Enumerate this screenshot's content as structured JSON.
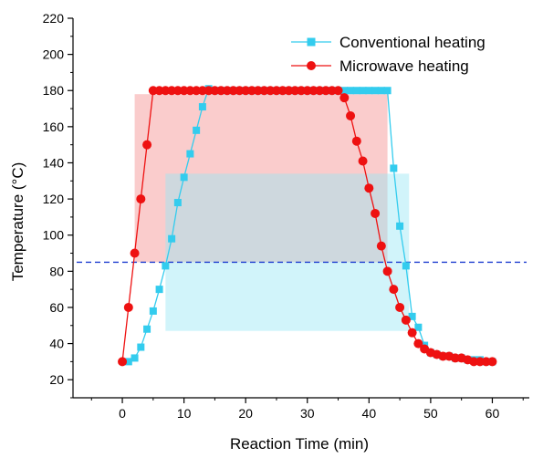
{
  "chart_data": {
    "type": "line",
    "xlabel": "Reaction Time (min)",
    "ylabel": "Temperature (°C)",
    "xlim": [
      -8,
      66
    ],
    "ylim": [
      10,
      220
    ],
    "x_ticks": [
      0,
      10,
      20,
      30,
      40,
      50,
      60
    ],
    "y_ticks": [
      20,
      40,
      60,
      80,
      100,
      120,
      140,
      160,
      180,
      200,
      220
    ],
    "legend_position": "top-right",
    "series": [
      {
        "name": "Conventional heating",
        "color": "#33CCEE",
        "marker": "square",
        "points": [
          [
            1,
            30
          ],
          [
            2,
            32
          ],
          [
            3,
            38
          ],
          [
            4,
            48
          ],
          [
            5,
            58
          ],
          [
            6,
            70
          ],
          [
            7,
            83
          ],
          [
            8,
            98
          ],
          [
            9,
            118
          ],
          [
            10,
            132
          ],
          [
            11,
            145
          ],
          [
            12,
            158
          ],
          [
            13,
            171
          ],
          [
            14,
            181
          ],
          [
            15,
            180
          ],
          [
            16,
            180
          ],
          [
            17,
            180
          ],
          [
            18,
            180
          ],
          [
            19,
            180
          ],
          [
            20,
            180
          ],
          [
            21,
            180
          ],
          [
            22,
            180
          ],
          [
            23,
            180
          ],
          [
            24,
            180
          ],
          [
            25,
            180
          ],
          [
            26,
            180
          ],
          [
            27,
            180
          ],
          [
            28,
            180
          ],
          [
            29,
            180
          ],
          [
            30,
            180
          ],
          [
            31,
            180
          ],
          [
            32,
            180
          ],
          [
            33,
            180
          ],
          [
            34,
            180
          ],
          [
            35,
            180
          ],
          [
            36,
            180
          ],
          [
            37,
            180
          ],
          [
            38,
            180
          ],
          [
            39,
            180
          ],
          [
            40,
            180
          ],
          [
            41,
            180
          ],
          [
            42,
            180
          ],
          [
            43,
            180
          ],
          [
            44,
            137
          ],
          [
            45,
            105
          ],
          [
            46,
            83
          ],
          [
            47,
            55
          ],
          [
            48,
            49
          ],
          [
            49,
            39
          ],
          [
            50,
            35
          ],
          [
            51,
            34
          ],
          [
            52,
            33
          ],
          [
            53,
            33
          ],
          [
            54,
            32
          ],
          [
            55,
            32
          ],
          [
            56,
            31
          ],
          [
            57,
            31
          ],
          [
            58,
            31
          ],
          [
            59,
            30
          ],
          [
            60,
            30
          ]
        ]
      },
      {
        "name": "Microwave heating",
        "color": "#EE1111",
        "marker": "circle",
        "points": [
          [
            0,
            30
          ],
          [
            1,
            60
          ],
          [
            2,
            90
          ],
          [
            3,
            120
          ],
          [
            4,
            150
          ],
          [
            5,
            180
          ],
          [
            6,
            180
          ],
          [
            7,
            180
          ],
          [
            8,
            180
          ],
          [
            9,
            180
          ],
          [
            10,
            180
          ],
          [
            11,
            180
          ],
          [
            12,
            180
          ],
          [
            13,
            180
          ],
          [
            14,
            180
          ],
          [
            15,
            180
          ],
          [
            16,
            180
          ],
          [
            17,
            180
          ],
          [
            18,
            180
          ],
          [
            19,
            180
          ],
          [
            20,
            180
          ],
          [
            21,
            180
          ],
          [
            22,
            180
          ],
          [
            23,
            180
          ],
          [
            24,
            180
          ],
          [
            25,
            180
          ],
          [
            26,
            180
          ],
          [
            27,
            180
          ],
          [
            28,
            180
          ],
          [
            29,
            180
          ],
          [
            30,
            180
          ],
          [
            31,
            180
          ],
          [
            32,
            180
          ],
          [
            33,
            180
          ],
          [
            34,
            180
          ],
          [
            35,
            180
          ],
          [
            36,
            176
          ],
          [
            37,
            166
          ],
          [
            38,
            152
          ],
          [
            39,
            141
          ],
          [
            40,
            126
          ],
          [
            41,
            112
          ],
          [
            42,
            94
          ],
          [
            43,
            80
          ],
          [
            44,
            70
          ],
          [
            45,
            60
          ],
          [
            46,
            53
          ],
          [
            47,
            46
          ],
          [
            48,
            40
          ],
          [
            49,
            37
          ],
          [
            50,
            35
          ],
          [
            51,
            34
          ],
          [
            52,
            33
          ],
          [
            53,
            33
          ],
          [
            54,
            32
          ],
          [
            55,
            32
          ],
          [
            56,
            31
          ],
          [
            57,
            30
          ],
          [
            58,
            30
          ],
          [
            59,
            30
          ],
          [
            60,
            30
          ]
        ]
      }
    ],
    "shaded_regions": [
      {
        "x": [
          2,
          43
        ],
        "y": [
          85,
          178
        ],
        "color": "#F6A3A3",
        "opacity": 0.55
      },
      {
        "x": [
          7,
          46.5
        ],
        "y": [
          47,
          134
        ],
        "color": "#9AE6F3",
        "opacity": 0.45
      }
    ],
    "reference_line": {
      "y": 85,
      "x": [
        -8,
        66
      ],
      "color": "#1F3FD0",
      "style": "dashed"
    }
  }
}
